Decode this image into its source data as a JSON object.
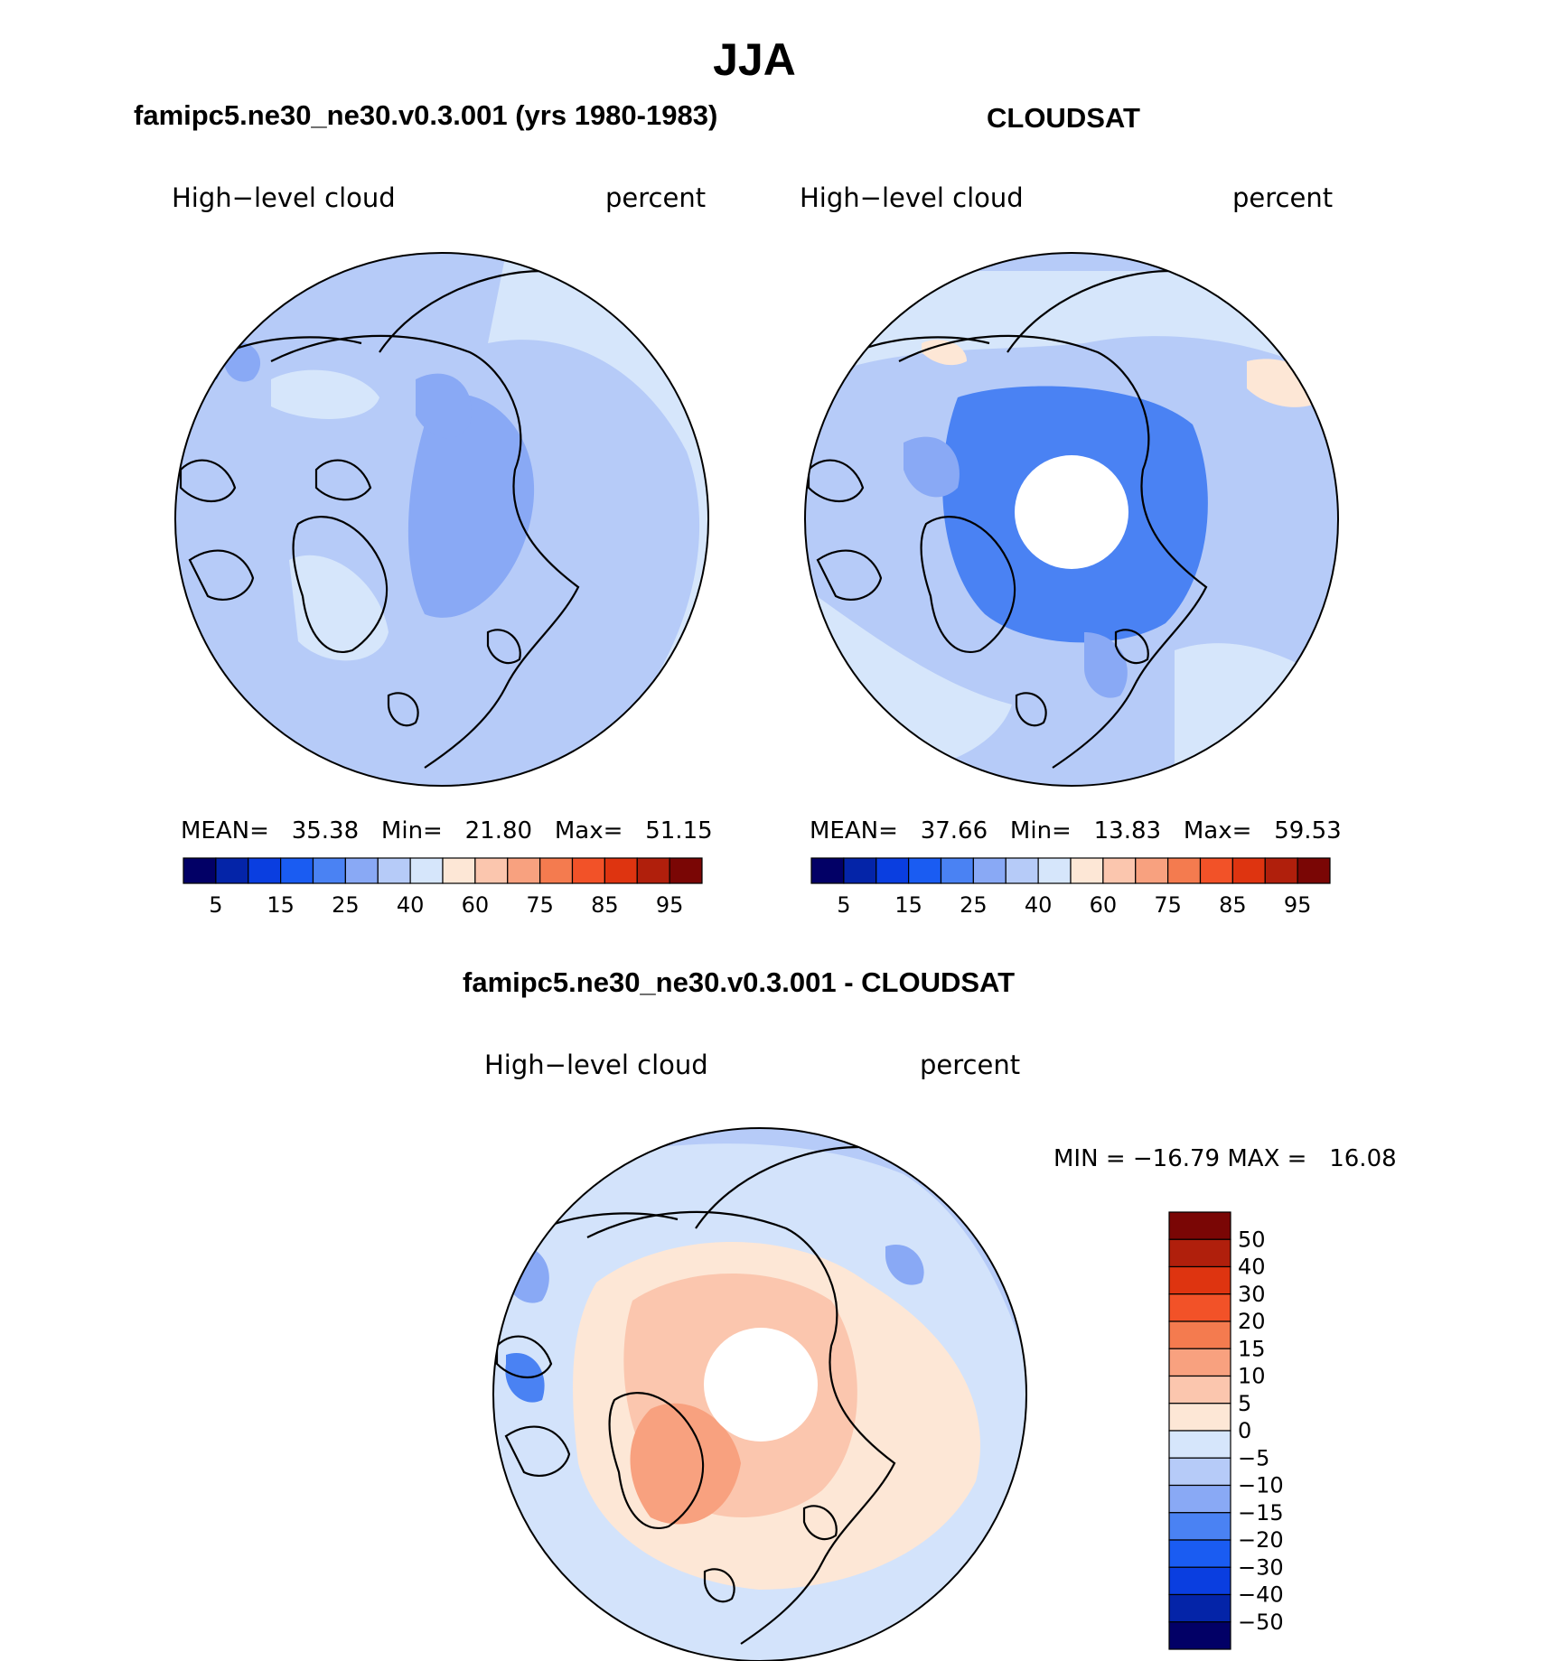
{
  "title": "JJA",
  "panels": [
    {
      "id": "model",
      "header": "famipc5.ne30_ne30.v0.3.001 (yrs 1980-1983)",
      "variable": "High−level cloud",
      "units": "percent",
      "mean_label": "MEAN=",
      "mean": "35.38",
      "min_label": "Min=",
      "min": "21.80",
      "max_label": "Max=",
      "max": "51.15"
    },
    {
      "id": "obs",
      "header": "CLOUDSAT",
      "variable": "High−level cloud",
      "units": "percent",
      "mean_label": "MEAN=",
      "mean": "37.66",
      "min_label": "Min=",
      "min": "13.83",
      "max_label": "Max=",
      "max": "59.53"
    },
    {
      "id": "diff",
      "header": "famipc5.ne30_ne30.v0.3.001 - CLOUDSAT",
      "variable": "High−level cloud",
      "units": "percent",
      "minmax_text": "MIN = −16.79 MAX =   16.08"
    }
  ],
  "colorbar_abs": {
    "colors": [
      "#020066",
      "#0424a8",
      "#0a3ee0",
      "#1a5cf2",
      "#4a82f3",
      "#89a9f5",
      "#b6cbf8",
      "#d6e6fb",
      "#fde7d6",
      "#fbc6ae",
      "#f8a17f",
      "#f47b4f",
      "#f25228",
      "#de3410",
      "#b01f0c",
      "#7a0605"
    ],
    "labels": [
      "5",
      "15",
      "25",
      "40",
      "60",
      "75",
      "85",
      "95"
    ]
  },
  "colorbar_diff": {
    "colors": [
      "#7a0605",
      "#b01f0c",
      "#de3410",
      "#f25228",
      "#f47b4f",
      "#f8a17f",
      "#fbc6ae",
      "#fde7d6",
      "#d6e6fb",
      "#b6cbf8",
      "#89a9f5",
      "#4a82f3",
      "#1a5cf2",
      "#0a3ee0",
      "#0424a8",
      "#020066"
    ],
    "labels": [
      "50",
      "40",
      "30",
      "20",
      "15",
      "10",
      "5",
      "0",
      "−5",
      "−10",
      "−15",
      "−20",
      "−30",
      "−40",
      "−50"
    ]
  }
}
